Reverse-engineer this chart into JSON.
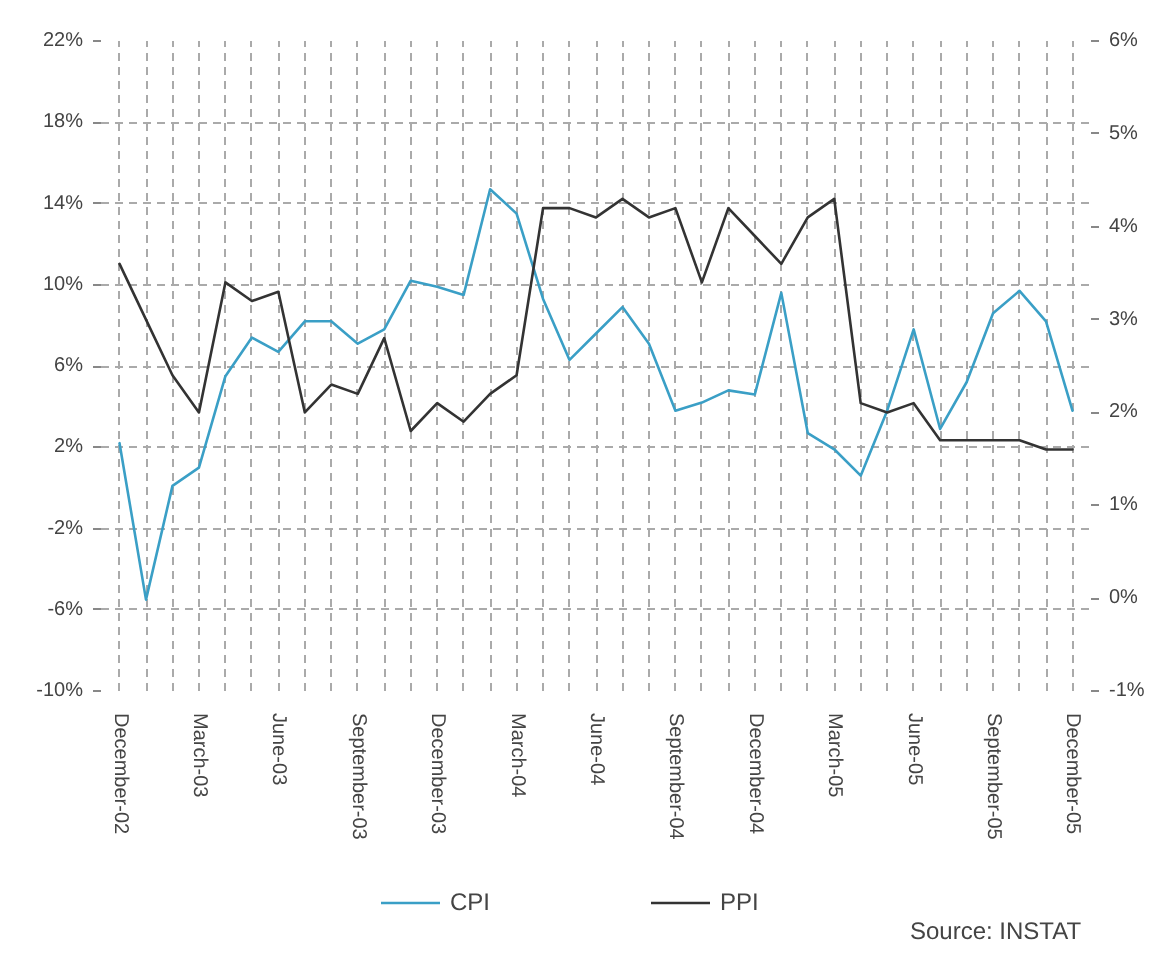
{
  "chart_data": {
    "type": "line",
    "categories": [
      "December-02",
      null,
      null,
      "March-03",
      null,
      null,
      "June-03",
      null,
      null,
      "September-03",
      null,
      null,
      "December-03",
      null,
      null,
      "March-04",
      null,
      null,
      "June-04",
      null,
      null,
      "September-04",
      null,
      null,
      "December-04",
      null,
      null,
      "March-05",
      null,
      null,
      "June-05",
      null,
      null,
      "September-05",
      null,
      null,
      "December-05"
    ],
    "series": [
      {
        "name": "CPI",
        "color": "#3a9fc6",
        "values": [
          2.2,
          -5.5,
          0.1,
          1.0,
          5.5,
          7.4,
          6.7,
          8.2,
          8.2,
          7.1,
          7.8,
          10.2,
          9.9,
          9.5,
          14.7,
          13.5,
          9.3,
          6.3,
          7.6,
          8.9,
          7.1,
          3.8,
          4.2,
          4.8,
          4.6,
          9.6,
          2.7,
          1.9,
          0.6,
          3.8,
          7.8,
          2.9,
          5.2,
          8.6,
          9.7,
          8.2,
          3.8
        ]
      },
      {
        "name": "PPI",
        "color": "#333333",
        "axis": "y2",
        "values": [
          3.6,
          3.0,
          2.4,
          2.0,
          3.4,
          3.2,
          3.3,
          2.0,
          2.3,
          2.2,
          2.8,
          1.8,
          2.1,
          1.9,
          2.2,
          2.4,
          4.2,
          4.2,
          4.1,
          4.3,
          4.1,
          4.2,
          3.4,
          4.2,
          3.9,
          3.6,
          4.1,
          4.3,
          2.1,
          2.0,
          2.1,
          1.7,
          1.7,
          1.7,
          1.7,
          1.6,
          1.6
        ]
      }
    ],
    "ylim": [
      -10,
      22
    ],
    "yticks": [
      {
        "value": -10,
        "label": "-10%"
      },
      {
        "value": -6,
        "label": "-6%"
      },
      {
        "value": -2,
        "label": "-2%"
      },
      {
        "value": 2,
        "label": "2%"
      },
      {
        "value": 6,
        "label": "6%"
      },
      {
        "value": 10,
        "label": "10%"
      },
      {
        "value": 14,
        "label": "14%"
      },
      {
        "value": 18,
        "label": "18%"
      },
      {
        "value": 22,
        "label": "22%"
      }
    ],
    "y2lim": [
      -1,
      6
    ],
    "y2ticks": [
      {
        "value": -1,
        "label": "-1%"
      },
      {
        "value": 0,
        "label": "0%"
      },
      {
        "value": 1,
        "label": "1%"
      },
      {
        "value": 2,
        "label": "2%"
      },
      {
        "value": 3,
        "label": "3%"
      },
      {
        "value": 4,
        "label": "4%"
      },
      {
        "value": 5,
        "label": "5%"
      },
      {
        "value": 6,
        "label": "6%"
      }
    ],
    "grid": true,
    "legend": "bottom",
    "line_style": "solid",
    "annotations": [
      "Source: INSTAT"
    ]
  }
}
